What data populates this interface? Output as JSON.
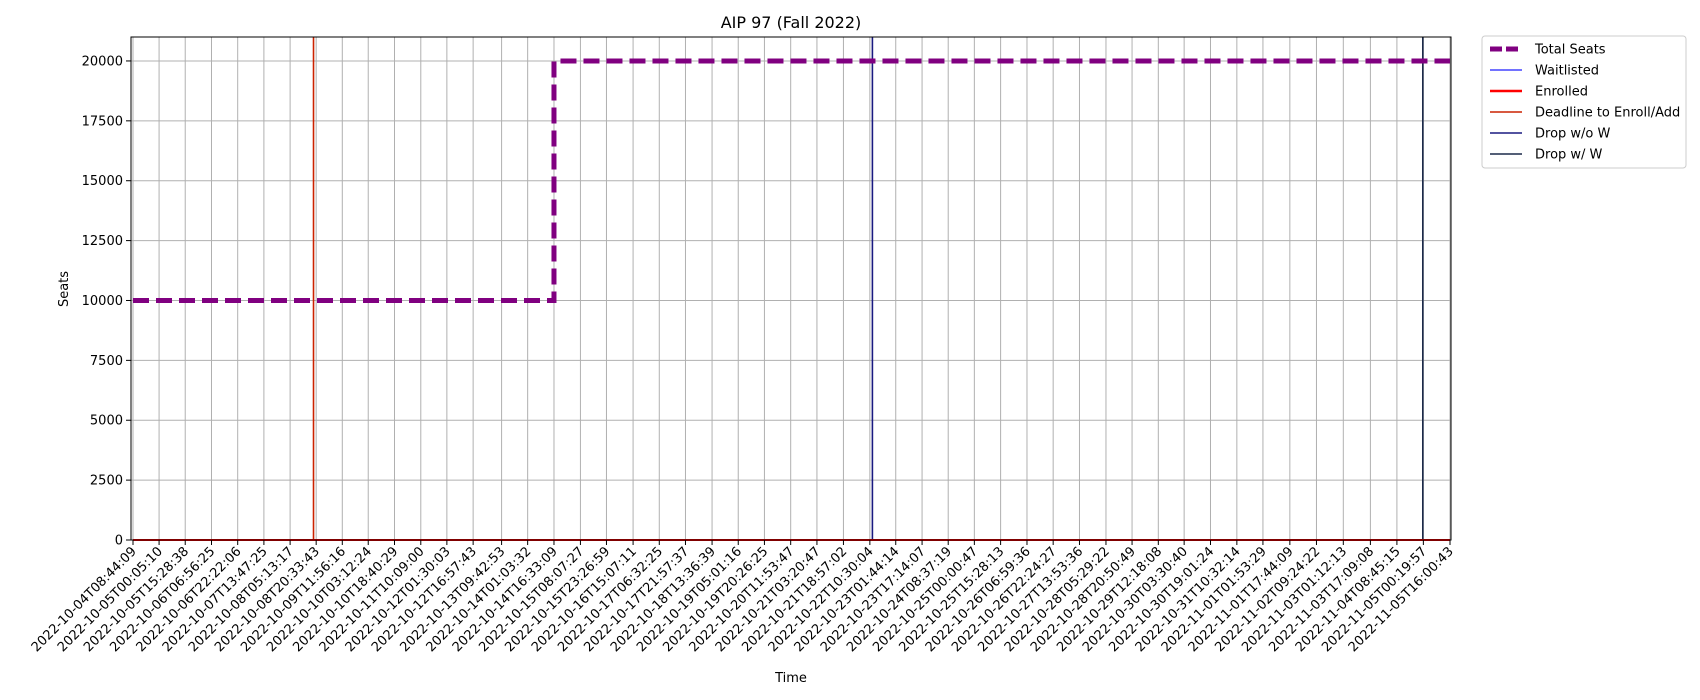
{
  "chart_data": {
    "type": "line",
    "title": "AIP 97 (Fall 2022)",
    "xlabel": "Time",
    "ylabel": "Seats",
    "ylim": [
      0,
      21000
    ],
    "y_ticks": [
      0,
      2500,
      5000,
      7500,
      10000,
      12500,
      15000,
      17500,
      20000
    ],
    "grid": true,
    "legend_placement": "outside top-right",
    "x": [
      "2022-10-04T08:44:09",
      "2022-10-05T00:05:10",
      "2022-10-05T15:28:38",
      "2022-10-06T06:56:25",
      "2022-10-06T22:22:06",
      "2022-10-07T13:47:25",
      "2022-10-08T05:13:17",
      "2022-10-08T20:33:43",
      "2022-10-09T11:56:16",
      "2022-10-10T03:12:24",
      "2022-10-10T18:40:29",
      "2022-10-11T10:09:00",
      "2022-10-12T01:30:03",
      "2022-10-12T16:57:43",
      "2022-10-13T09:42:53",
      "2022-10-14T01:03:32",
      "2022-10-14T16:33:09",
      "2022-10-15T08:07:27",
      "2022-10-15T23:26:59",
      "2022-10-16T15:07:11",
      "2022-10-17T06:32:25",
      "2022-10-17T21:57:37",
      "2022-10-18T13:36:39",
      "2022-10-19T05:01:16",
      "2022-10-19T20:26:25",
      "2022-10-20T11:53:47",
      "2022-10-21T03:20:47",
      "2022-10-21T18:57:02",
      "2022-10-22T10:30:04",
      "2022-10-23T01:44:14",
      "2022-10-23T17:14:07",
      "2022-10-24T08:37:19",
      "2022-10-25T00:00:47",
      "2022-10-25T15:28:13",
      "2022-10-26T06:59:36",
      "2022-10-26T22:24:27",
      "2022-10-27T13:53:36",
      "2022-10-28T05:29:22",
      "2022-10-28T20:50:49",
      "2022-10-29T12:18:08",
      "2022-10-30T03:30:40",
      "2022-10-30T19:01:24",
      "2022-10-31T10:32:14",
      "2022-11-01T01:53:29",
      "2022-11-01T17:44:09",
      "2022-11-02T09:24:22",
      "2022-11-03T01:12:13",
      "2022-11-03T17:09:08",
      "2022-11-04T08:45:15",
      "2022-11-05T00:19:57",
      "2022-11-05T16:00:43"
    ],
    "series": [
      {
        "name": "Total Seats",
        "color": "#800080",
        "style": "dashed",
        "values": [
          10000,
          10000,
          10000,
          10000,
          10000,
          10000,
          10000,
          10000,
          10000,
          10000,
          10000,
          10000,
          10000,
          10000,
          10000,
          10000,
          20000,
          20000,
          20000,
          20000,
          20000,
          20000,
          20000,
          20000,
          20000,
          20000,
          20000,
          20000,
          20000,
          20000,
          20000,
          20000,
          20000,
          20000,
          20000,
          20000,
          20000,
          20000,
          20000,
          20000,
          20000,
          20000,
          20000,
          20000,
          20000,
          20000,
          20000,
          20000,
          20000,
          20000,
          20000
        ]
      },
      {
        "name": "Waitlisted",
        "color": "#1f1fff",
        "style": "solid",
        "values": [
          0,
          0,
          0,
          0,
          0,
          0,
          0,
          0,
          0,
          0,
          0,
          0,
          0,
          0,
          0,
          0,
          0,
          0,
          0,
          0,
          0,
          0,
          0,
          0,
          0,
          0,
          0,
          0,
          0,
          0,
          0,
          0,
          0,
          0,
          0,
          0,
          0,
          0,
          0,
          0,
          0,
          0,
          0,
          0,
          0,
          0,
          0,
          0,
          0,
          0,
          0
        ]
      },
      {
        "name": "Enrolled",
        "color": "#ff0000",
        "style": "solid",
        "values": [
          0,
          0,
          0,
          0,
          0,
          0,
          0,
          0,
          0,
          0,
          0,
          0,
          0,
          0,
          0,
          0,
          0,
          0,
          0,
          0,
          0,
          0,
          0,
          0,
          0,
          0,
          0,
          0,
          0,
          0,
          0,
          0,
          0,
          0,
          0,
          0,
          0,
          0,
          0,
          0,
          0,
          0,
          0,
          0,
          0,
          0,
          0,
          0,
          0,
          0,
          0
        ]
      }
    ],
    "vlines": [
      {
        "name": "Deadline to Enroll/Add",
        "color": "#cc2200",
        "x": "2022-10-08T19:00:00"
      },
      {
        "name": "Drop w/o W",
        "color": "#1a1a80",
        "x": "2022-10-22T12:00:00"
      },
      {
        "name": "Drop w/ W",
        "color": "#1c2a4a",
        "x": "2022-11-05T00:00:00"
      }
    ]
  }
}
